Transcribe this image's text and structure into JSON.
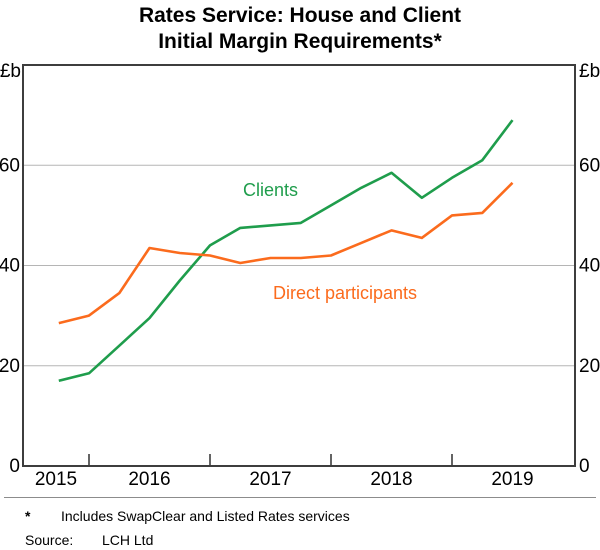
{
  "title": {
    "line1": "Rates Service: House and Client",
    "line2": "Initial Margin Requirements*"
  },
  "axis": {
    "unit_left": "£b",
    "unit_right": "£b",
    "y_tick_labels": [
      "0",
      "20",
      "40",
      "60"
    ],
    "year_labels": [
      "2015",
      "2016",
      "2017",
      "2018",
      "2019"
    ]
  },
  "series_labels": {
    "clients": "Clients",
    "direct": "Direct participants"
  },
  "footnote": {
    "marker": "*",
    "text": "Includes SwapClear and Listed Rates services",
    "source_label": "Source:",
    "source_value": "LCH Ltd"
  },
  "colors": {
    "clients": "#1f9d4c",
    "direct": "#fb6b1d",
    "grid": "#b5b5b5",
    "frame": "#3d3d3d",
    "text": "#000000"
  },
  "chart_data": {
    "type": "line",
    "title": "Rates Service: House and Client Initial Margin Requirements*",
    "ylabel": "£b",
    "ylim": [
      0,
      80
    ],
    "y_ticks": [
      0,
      20,
      40,
      60
    ],
    "grid": "horizontal",
    "legend_position": "inline-labels",
    "x_range": [
      "2015 (partial)",
      "2019"
    ],
    "x": [
      "Sep 2015",
      "Dec 2015",
      "Mar 2016",
      "Jun 2016",
      "Sep 2016",
      "Dec 2016",
      "Mar 2017",
      "Jun 2017",
      "Sep 2017",
      "Dec 2017",
      "Mar 2018",
      "Jun 2018",
      "Sep 2018",
      "Dec 2018",
      "Mar 2019",
      "Jun 2019"
    ],
    "series": [
      {
        "name": "Clients",
        "color": "#1f9d4c",
        "values": [
          17,
          18.5,
          24,
          29.5,
          37,
          44,
          47.5,
          48,
          48.5,
          52,
          55.5,
          58.5,
          53.5,
          57.5,
          61,
          69
        ]
      },
      {
        "name": "Direct participants",
        "color": "#fb6b1d",
        "values": [
          28.5,
          30,
          34.5,
          43.5,
          42.5,
          42,
          40.5,
          41.5,
          41.5,
          42,
          44.5,
          47,
          45.5,
          50,
          50.5,
          56.5
        ]
      }
    ]
  }
}
